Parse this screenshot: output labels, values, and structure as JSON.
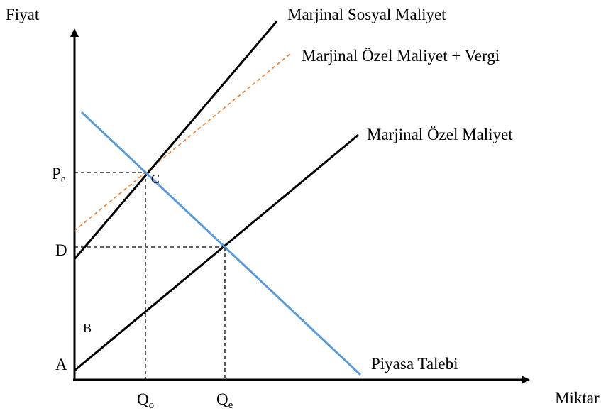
{
  "axes": {
    "y_label": "Fiyat",
    "x_label": "Miktar"
  },
  "curves": [
    {
      "label": "Marjinal Sosyal Maliyet"
    },
    {
      "label": "Marjinal Özel Maliyet + Vergi"
    },
    {
      "label": "Marjinal Özel Maliyet"
    },
    {
      "label": "Piyasa Talebi"
    }
  ],
  "points": {
    "Pe": {
      "main": "P",
      "sub": "e"
    },
    "D": "D",
    "B": "B",
    "A": "A",
    "C": "C",
    "Qo": {
      "main": "Q",
      "sub": "o"
    },
    "Qe": {
      "main": "Q",
      "sub": "e"
    }
  }
}
